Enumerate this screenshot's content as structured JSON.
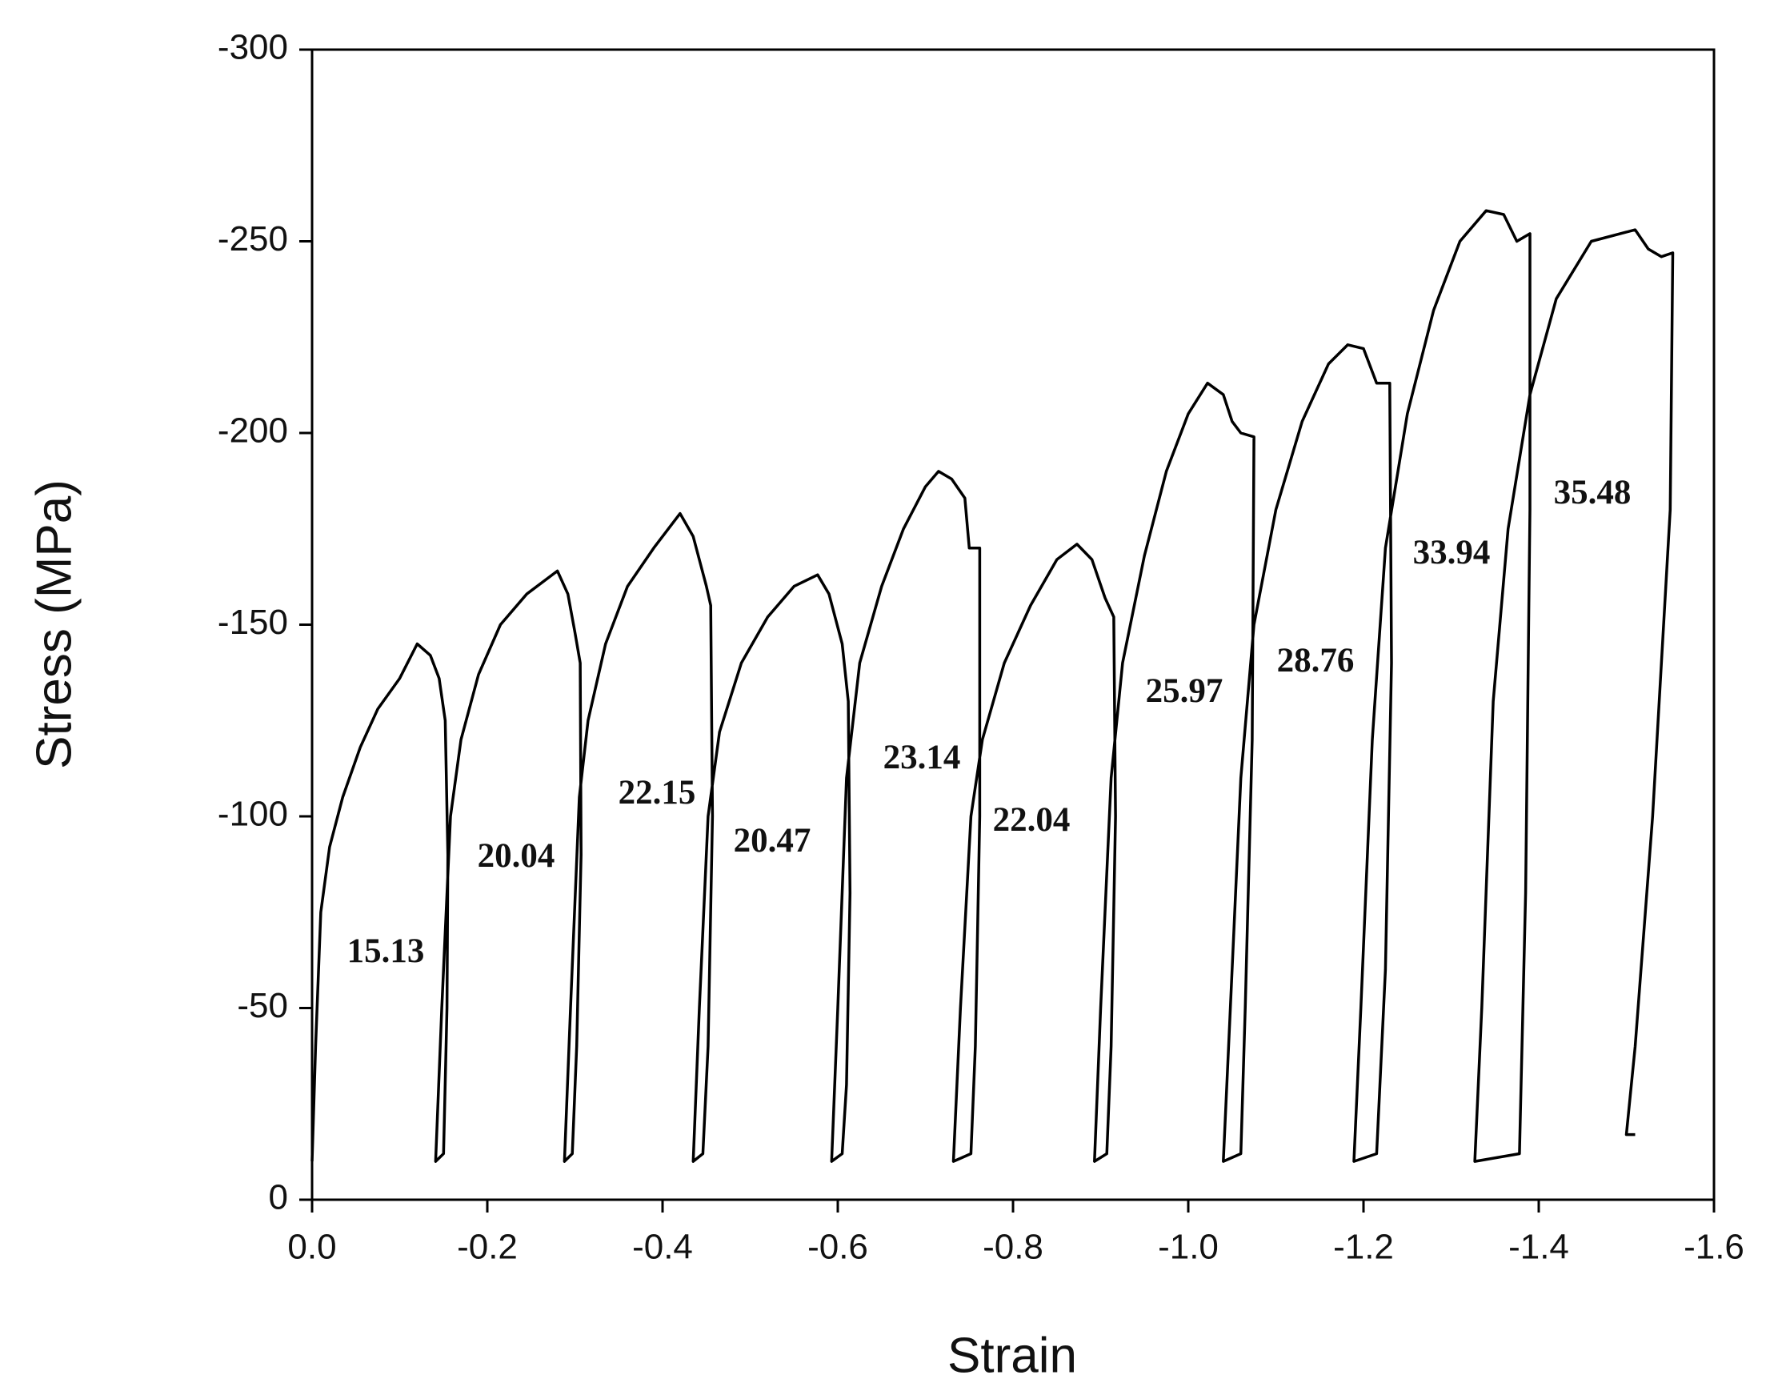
{
  "chart_data": {
    "type": "line",
    "xlabel": "Strain",
    "ylabel": "Stress (MPa)",
    "xlim": [
      0,
      -1.6
    ],
    "ylim": [
      0,
      -300
    ],
    "xticks": [
      {
        "value": 0,
        "label": "0.0"
      },
      -0.2,
      -0.4,
      -0.6,
      -0.8,
      {
        "value": -1,
        "label": "-1.0"
      },
      -1.2,
      -1.4,
      -1.6
    ],
    "yticks": [
      0,
      -50,
      -100,
      -150,
      -200,
      -250,
      -300
    ],
    "color": "#000000",
    "x": [
      0,
      -0.004,
      -0.01,
      -0.02,
      -0.035,
      -0.055,
      -0.075,
      -0.1,
      -0.12,
      -0.135,
      -0.145,
      -0.152,
      -0.155,
      -0.154,
      -0.15,
      -0.141,
      -0.148,
      -0.158,
      -0.17,
      -0.19,
      -0.215,
      -0.245,
      -0.28,
      -0.292,
      -0.3,
      -0.306,
      -0.307,
      -0.302,
      -0.297,
      -0.288,
      -0.295,
      -0.305,
      -0.315,
      -0.335,
      -0.36,
      -0.39,
      -0.42,
      -0.435,
      -0.45,
      -0.455,
      -0.457,
      -0.452,
      -0.446,
      -0.435,
      -0.442,
      -0.452,
      -0.465,
      -0.49,
      -0.52,
      -0.55,
      -0.577,
      -0.59,
      -0.605,
      -0.612,
      -0.614,
      -0.61,
      -0.605,
      -0.593,
      -0.6,
      -0.61,
      -0.625,
      -0.65,
      -0.675,
      -0.7,
      -0.715,
      -0.73,
      -0.745,
      -0.75,
      -0.762,
      -0.762,
      -0.757,
      -0.752,
      -0.732,
      -0.74,
      -0.752,
      -0.765,
      -0.79,
      -0.82,
      -0.85,
      -0.873,
      -0.89,
      -0.905,
      -0.915,
      -0.917,
      -0.912,
      -0.907,
      -0.893,
      -0.9,
      -0.912,
      -0.925,
      -0.95,
      -0.975,
      -1.0,
      -1.022,
      -1.04,
      -1.05,
      -1.06,
      -1.075,
      -1.073,
      -1.065,
      -1.06,
      -1.04,
      -1.048,
      -1.06,
      -1.075,
      -1.1,
      -1.13,
      -1.16,
      -1.182,
      -1.2,
      -1.215,
      -1.23,
      -1.232,
      -1.225,
      -1.215,
      -1.189,
      -1.197,
      -1.21,
      -1.225,
      -1.25,
      -1.28,
      -1.31,
      -1.34,
      -1.36,
      -1.375,
      -1.39,
      -1.39,
      -1.385,
      -1.378,
      -1.327,
      -1.335,
      -1.348,
      -1.365,
      -1.39,
      -1.42,
      -1.46,
      -1.51,
      -1.525,
      -1.54,
      -1.553,
      -1.55,
      -1.53,
      -1.51,
      -1.5,
      -1.51
    ],
    "values": [
      -10,
      -40,
      -75,
      -92,
      -105,
      -118,
      -128,
      -136,
      -145,
      -142,
      -136,
      -125,
      -90,
      -50,
      -12,
      -10,
      -50,
      -100,
      -120,
      -137,
      -150,
      -158,
      -164,
      -158,
      -148,
      -140,
      -90,
      -40,
      -12,
      -10,
      -50,
      -105,
      -125,
      -145,
      -160,
      -170,
      -179,
      -173,
      -160,
      -155,
      -100,
      -40,
      -12,
      -10,
      -50,
      -100,
      -122,
      -140,
      -152,
      -160,
      -163,
      -158,
      -145,
      -130,
      -80,
      -30,
      -12,
      -10,
      -50,
      -110,
      -140,
      -160,
      -175,
      -186,
      -190,
      -188,
      -183,
      -170,
      -170,
      -100,
      -40,
      -12,
      -10,
      -50,
      -100,
      -120,
      -140,
      -155,
      -167,
      -171,
      -167,
      -157,
      -152,
      -100,
      -40,
      -12,
      -10,
      -50,
      -110,
      -140,
      -168,
      -190,
      -205,
      -213,
      -210,
      -203,
      -200,
      -199,
      -120,
      -50,
      -12,
      -10,
      -50,
      -110,
      -150,
      -180,
      -203,
      -218,
      -223,
      -222,
      -213,
      -213,
      -140,
      -60,
      -12,
      -10,
      -50,
      -120,
      -170,
      -205,
      -232,
      -250,
      -258,
      -257,
      -250,
      -252,
      -180,
      -80,
      -12,
      -10,
      -50,
      -130,
      -175,
      -210,
      -235,
      -250,
      -253,
      -248,
      -246,
      -247,
      -180,
      -100,
      -40,
      -17,
      -17
    ],
    "annotations": [
      "15.13",
      "20.04",
      "22.15",
      "20.47",
      "23.14",
      "22.04",
      "25.97",
      "28.76",
      "33.94",
      "35.48"
    ]
  }
}
